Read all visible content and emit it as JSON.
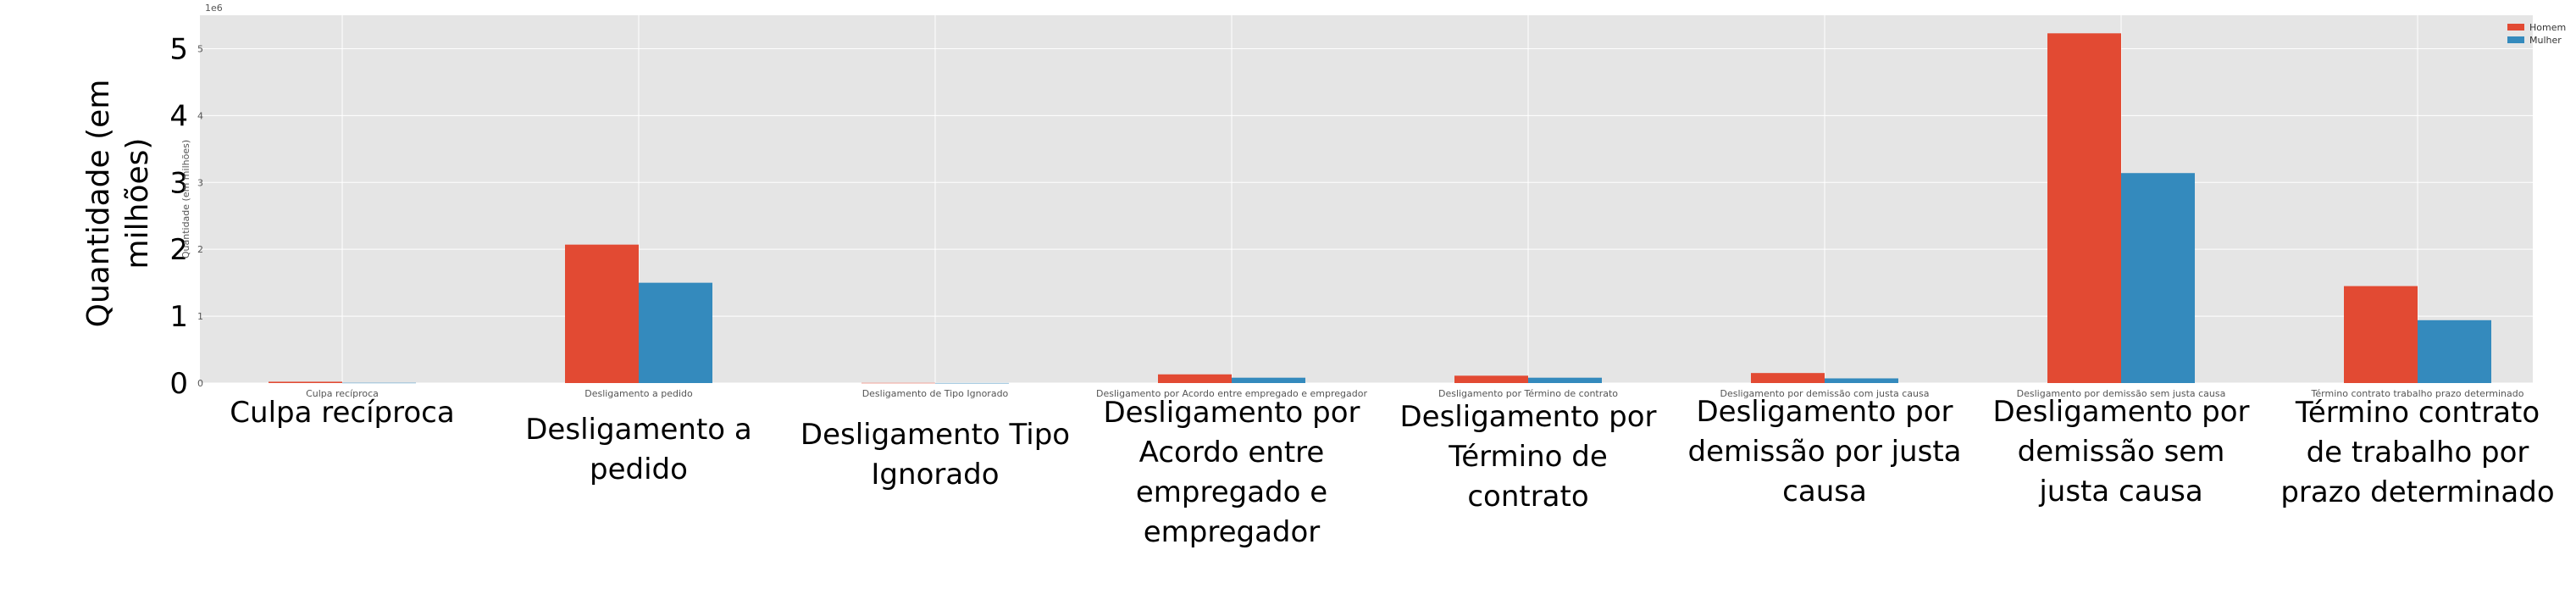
{
  "chart_data": {
    "type": "bar",
    "ylabel": "Quantidade (em milhões)",
    "ylabel_lines": [
      "Quantidade (em",
      "milhões)"
    ],
    "ylabel_small": "Quantidade (em milhões)",
    "offset_text": "1e6",
    "ylim": [
      0,
      5500000
    ],
    "yticks": [
      0,
      1000000,
      2000000,
      3000000,
      4000000,
      5000000
    ],
    "ytick_labels": [
      "0",
      "1",
      "2",
      "3",
      "4",
      "5"
    ],
    "grid": true,
    "legend_position": "top-right",
    "categories": [
      "Culpa recíproca",
      "Desligamento a pedido",
      "Desligamento de Tipo Ignorado",
      "Desligamento por Acordo entre empregado e empregador",
      "Desligamento por Término de contrato",
      "Desligamento por demissão com justa causa",
      "Desligamento por demissão sem justa causa",
      "Término contrato trabalho prazo determinado"
    ],
    "category_labels_large": [
      [
        "Culpa recíproca"
      ],
      [
        "Desligamento a",
        "pedido"
      ],
      [
        "Desligamento Tipo",
        "Ignorado"
      ],
      [
        "Desligamento por",
        "Acordo entre",
        "empregado e",
        "empregador"
      ],
      [
        "Desligamento por",
        "Término de",
        "contrato"
      ],
      [
        "Desligamento por",
        "demissão por justa",
        "causa"
      ],
      [
        "Desligamento por",
        "demissão sem",
        "justa causa"
      ],
      [
        "Término contrato",
        "de trabalho por",
        "prazo determinado"
      ]
    ],
    "series": [
      {
        "name": "Homem",
        "color": "#E24A33",
        "values": [
          20000,
          2070000,
          3000,
          130000,
          110000,
          150000,
          5230000,
          1450000
        ]
      },
      {
        "name": "Mulher",
        "color": "#348ABD",
        "values": [
          4000,
          1500000,
          1000,
          80000,
          80000,
          70000,
          3140000,
          940000
        ]
      }
    ]
  }
}
